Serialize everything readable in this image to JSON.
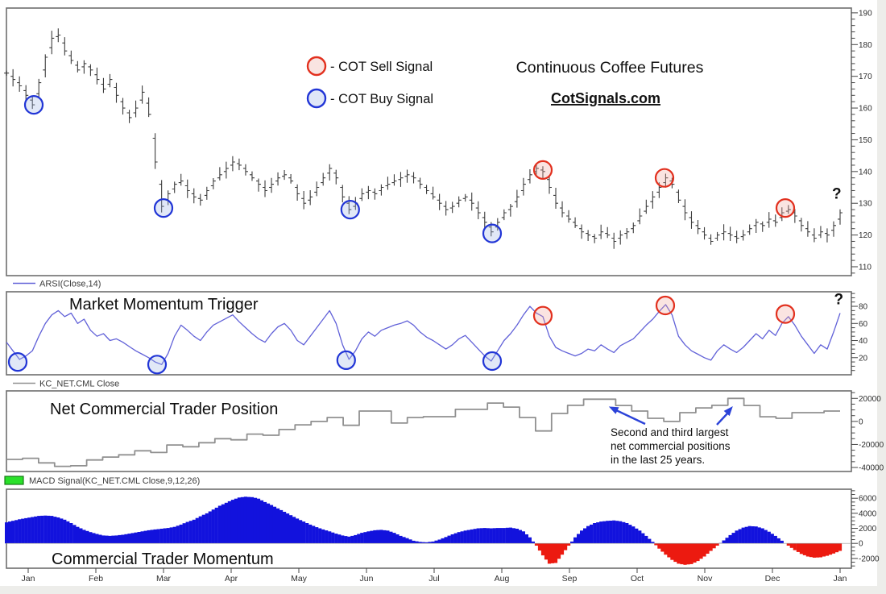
{
  "header": {
    "title": "Continuous Coffee Futures",
    "website": "CotSignals.com",
    "website_color": "#4f7d20",
    "legend": [
      {
        "label": "- COT Sell Signal",
        "type": "sell",
        "color": "#e2301e"
      },
      {
        "label": "- COT Buy Signal",
        "type": "buy",
        "color": "#2135d6"
      }
    ]
  },
  "annotation": {
    "lines": [
      "Second and third largest",
      "net commercial positions",
      "in the last 25 years."
    ],
    "arrow_color": "#2c43d8"
  },
  "signal_style": {
    "buy": {
      "stroke": "#2135d6",
      "fill": "#9db4e6"
    },
    "sell": {
      "stroke": "#e2301e",
      "fill": "#f0a49a"
    }
  },
  "question_mark_color": "#e02312",
  "x_axis": {
    "labels": [
      "Jan",
      "Feb",
      "Mar",
      "Apr",
      "May",
      "Jun",
      "Jul",
      "Aug",
      "Sep",
      "Oct",
      "Nov",
      "Dec",
      "Jan"
    ]
  },
  "chart_data": [
    {
      "id": "price",
      "type": "ohlc-bar",
      "title": "Continuous Coffee Futures",
      "bar_color": "#3d3d3d",
      "x_unit": "months",
      "x_range_months": [
        -0.32,
        12.0
      ],
      "y_axis": {
        "ticks": [
          190,
          180,
          170,
          160,
          150,
          140,
          130,
          120,
          110
        ],
        "minor_step": 2,
        "range": [
          107.2,
          191.5
        ]
      },
      "close": [
        171,
        169,
        167,
        164,
        161,
        168,
        176,
        182,
        183,
        178,
        175,
        172,
        174,
        172,
        169,
        166,
        169,
        164,
        160,
        157,
        160,
        165,
        158,
        143,
        129,
        133,
        136,
        137,
        134,
        132,
        131,
        134,
        137,
        139,
        141,
        143,
        142,
        140,
        138,
        136,
        134,
        136,
        138,
        139,
        137,
        133,
        130,
        132,
        135,
        138,
        141,
        138,
        132,
        128,
        130,
        133,
        134,
        133,
        135,
        136,
        137,
        138,
        139,
        138,
        136,
        134,
        132,
        130,
        128,
        129,
        131,
        132,
        130,
        127,
        124,
        121,
        124,
        127,
        129,
        132,
        136,
        139,
        141,
        140,
        135,
        130,
        127,
        125,
        123,
        121,
        120,
        119,
        121,
        120,
        118,
        120,
        121,
        123,
        126,
        129,
        132,
        135,
        138,
        136,
        131,
        127,
        124,
        122,
        120,
        118,
        120,
        121,
        120,
        119,
        120,
        122,
        124,
        123,
        125,
        124,
        127,
        128,
        126,
        123,
        121,
        119,
        121,
        120,
        123,
        127
      ]
    },
    {
      "id": "arsi",
      "type": "line",
      "label": "ARSI(Close,14)",
      "title": "Market Momentum Trigger",
      "color": "#6161d8",
      "x_unit": "months",
      "x_range_months": [
        -0.32,
        12.0
      ],
      "y_axis": {
        "ticks": [
          80,
          60,
          40,
          20
        ],
        "minor_step": 5,
        "range": [
          0,
          97
        ]
      },
      "values": [
        38,
        28,
        18,
        22,
        28,
        45,
        60,
        70,
        75,
        68,
        72,
        60,
        65,
        52,
        45,
        48,
        40,
        42,
        38,
        33,
        28,
        24,
        20,
        15,
        12,
        25,
        45,
        58,
        52,
        45,
        40,
        50,
        58,
        62,
        66,
        70,
        62,
        55,
        48,
        42,
        38,
        48,
        56,
        60,
        52,
        40,
        35,
        45,
        55,
        65,
        75,
        60,
        35,
        18,
        28,
        42,
        50,
        45,
        52,
        55,
        58,
        60,
        63,
        58,
        50,
        44,
        40,
        35,
        30,
        35,
        42,
        46,
        38,
        30,
        22,
        16,
        28,
        40,
        48,
        58,
        70,
        80,
        72,
        68,
        45,
        32,
        28,
        25,
        22,
        25,
        30,
        28,
        35,
        30,
        26,
        34,
        38,
        42,
        50,
        58,
        65,
        74,
        82,
        70,
        45,
        35,
        28,
        24,
        20,
        17,
        28,
        35,
        30,
        26,
        32,
        40,
        48,
        42,
        52,
        46,
        60,
        68,
        58,
        45,
        35,
        25,
        35,
        30,
        50,
        72
      ]
    },
    {
      "id": "net",
      "type": "step-line",
      "label": "KC_NET.CML Close",
      "title": "Net Commercial Trader Position",
      "color": "#909090",
      "x_unit": "months",
      "x_range_months": [
        -0.32,
        12.0
      ],
      "y_axis": {
        "ticks": [
          20000,
          0,
          -20000,
          -40000
        ],
        "minor_step": 5000,
        "range": [
          -43500,
          26500
        ]
      },
      "values": [
        -33000,
        -32000,
        -36000,
        -39000,
        -38500,
        -33500,
        -31000,
        -29000,
        -25500,
        -27000,
        -20500,
        -22000,
        -18500,
        -15000,
        -16000,
        -11000,
        -12000,
        -7000,
        -3000,
        0,
        3400,
        -3400,
        9000,
        9000,
        -1400,
        3400,
        4100,
        4100,
        10500,
        10500,
        15900,
        12400,
        3400,
        -8300,
        6900,
        14000,
        19300,
        19300,
        13800,
        9000,
        2700,
        0,
        7600,
        11700,
        14000,
        20000,
        13800,
        4000,
        2700,
        7600,
        7600,
        9000,
        9000
      ]
    },
    {
      "id": "macd",
      "type": "histogram",
      "label": "MACD Signal(KC_NET.CML Close,9,12,26)",
      "title": "Commercial Trader Momentum",
      "colors": {
        "positive": "#1212dd",
        "negative": "#ec1a10",
        "legend_swatch": "#2ae02a"
      },
      "x_unit": "months",
      "x_range_months": [
        -0.32,
        12.0
      ],
      "y_axis": {
        "ticks": [
          6000,
          4000,
          2000,
          0,
          -2000
        ],
        "minor_step": 500,
        "range": [
          -3300,
          7200
        ]
      },
      "values": [
        2800,
        3000,
        3200,
        3350,
        3500,
        3650,
        3700,
        3650,
        3450,
        3150,
        2700,
        2200,
        1800,
        1500,
        1250,
        1050,
        1000,
        1050,
        1150,
        1300,
        1450,
        1600,
        1750,
        1850,
        1950,
        2050,
        2200,
        2500,
        2850,
        3150,
        3600,
        4000,
        4500,
        5000,
        5400,
        5800,
        6100,
        6200,
        6150,
        5950,
        5500,
        5100,
        4650,
        4200,
        3750,
        3300,
        2900,
        2500,
        2150,
        1850,
        1600,
        1300,
        1050,
        900,
        1100,
        1400,
        1600,
        1750,
        1800,
        1700,
        1400,
        1000,
        700,
        350,
        200,
        150,
        250,
        500,
        850,
        1200,
        1500,
        1700,
        1850,
        2000,
        2050,
        2000,
        2050,
        2050,
        2100,
        1950,
        1600,
        800,
        -300,
        -1600,
        -2700,
        -2600,
        -1500,
        -300,
        800,
        1700,
        2300,
        2700,
        2900,
        3000,
        3050,
        2950,
        2700,
        2250,
        1700,
        1000,
        200,
        -700,
        -1500,
        -2200,
        -2700,
        -2850,
        -2750,
        -2350,
        -1750,
        -1000,
        -300,
        400,
        1100,
        1700,
        2100,
        2300,
        2250,
        2000,
        1550,
        1000,
        350,
        -300,
        -900,
        -1400,
        -1750,
        -1900,
        -1850,
        -1650,
        -1350,
        -1000
      ]
    }
  ],
  "signals": [
    {
      "panel": "price",
      "type": "buy",
      "x": 0.083,
      "value": 161
    },
    {
      "panel": "price",
      "type": "buy",
      "x": 2.0,
      "value": 128.5
    },
    {
      "panel": "price",
      "type": "buy",
      "x": 4.76,
      "value": 128
    },
    {
      "panel": "price",
      "type": "buy",
      "x": 6.857,
      "value": 120.5
    },
    {
      "panel": "price",
      "type": "sell",
      "x": 7.607,
      "value": 140.5
    },
    {
      "panel": "price",
      "type": "sell",
      "x": 9.405,
      "value": 138
    },
    {
      "panel": "price",
      "type": "sell",
      "x": 11.19,
      "value": 128.5
    },
    {
      "panel": "arsi",
      "type": "buy",
      "x": -0.155,
      "value": 15
    },
    {
      "panel": "arsi",
      "type": "buy",
      "x": 1.905,
      "value": 12
    },
    {
      "panel": "arsi",
      "type": "buy",
      "x": 4.7,
      "value": 17
    },
    {
      "panel": "arsi",
      "type": "buy",
      "x": 6.857,
      "value": 16
    },
    {
      "panel": "arsi",
      "type": "sell",
      "x": 7.607,
      "value": 69
    },
    {
      "panel": "arsi",
      "type": "sell",
      "x": 9.417,
      "value": 81
    },
    {
      "panel": "arsi",
      "type": "sell",
      "x": 11.19,
      "value": 71
    }
  ],
  "question_marks": [
    {
      "panel": "price",
      "x": 11.95,
      "value": 133,
      "symbol": "?"
    },
    {
      "panel": "arsi",
      "x": 11.98,
      "value": 88,
      "symbol": "?"
    }
  ]
}
